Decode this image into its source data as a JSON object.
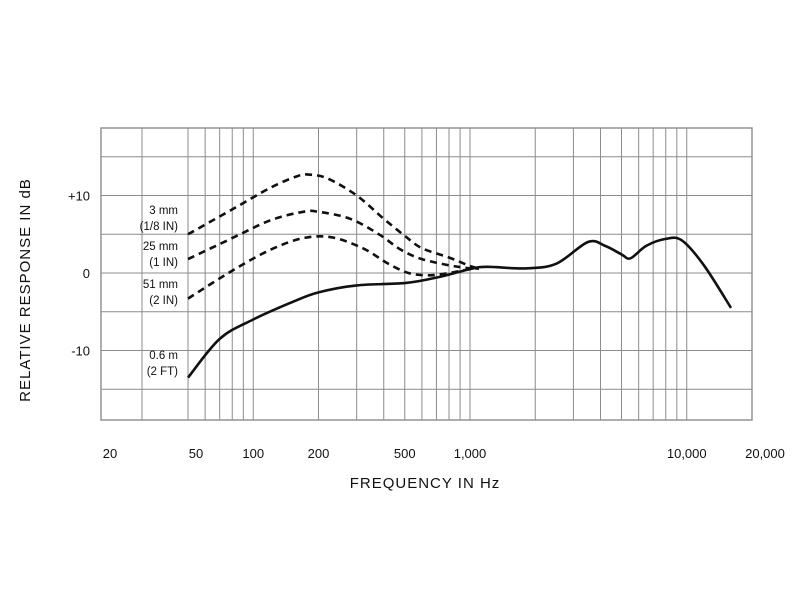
{
  "chart_data": {
    "type": "line",
    "title": "",
    "xlabel": "FREQUENCY IN Hz",
    "ylabel": "RELATIVE RESPONSE IN dB",
    "xscale": "log",
    "xlim": [
      20,
      20000
    ],
    "ylim": [
      -20,
      20
    ],
    "grid": true,
    "x_tick_labels": [
      {
        "value": 20,
        "label": "20"
      },
      {
        "value": 50,
        "label": "50"
      },
      {
        "value": 100,
        "label": "100"
      },
      {
        "value": 200,
        "label": "200"
      },
      {
        "value": 500,
        "label": "500"
      },
      {
        "value": 1000,
        "label": "1,000"
      },
      {
        "value": 10000,
        "label": "10,000"
      },
      {
        "value": 20000,
        "label": "20,000"
      }
    ],
    "y_tick_labels": [
      {
        "value": 10,
        "label": "+10"
      },
      {
        "value": 0,
        "label": "0"
      },
      {
        "value": -10,
        "label": "-10"
      }
    ],
    "series": [
      {
        "name": "3 mm (1/8 IN)",
        "label_lines": [
          "3 mm",
          "(1/8 IN)"
        ],
        "style": "dashed",
        "points": [
          [
            50,
            5
          ],
          [
            80,
            8.2
          ],
          [
            120,
            11
          ],
          [
            160,
            12.5
          ],
          [
            180,
            12.7
          ],
          [
            220,
            12.2
          ],
          [
            300,
            10
          ],
          [
            400,
            7
          ],
          [
            500,
            4.8
          ],
          [
            600,
            3.2
          ],
          [
            800,
            2
          ],
          [
            1000,
            0.9
          ],
          [
            1100,
            0.6
          ]
        ]
      },
      {
        "name": "25 mm (1 IN)",
        "label_lines": [
          "25 mm",
          "(1 IN)"
        ],
        "style": "dashed",
        "points": [
          [
            50,
            1.8
          ],
          [
            80,
            4.5
          ],
          [
            120,
            6.8
          ],
          [
            170,
            7.9
          ],
          [
            200,
            7.9
          ],
          [
            280,
            7
          ],
          [
            380,
            5
          ],
          [
            480,
            3
          ],
          [
            600,
            1.8
          ],
          [
            800,
            1
          ],
          [
            1000,
            0.6
          ],
          [
            1100,
            0.6
          ]
        ]
      },
      {
        "name": "51 mm (2 IN)",
        "label_lines": [
          "51 mm",
          "(2 IN)"
        ],
        "style": "dashed",
        "points": [
          [
            50,
            -3.3
          ],
          [
            80,
            0.3
          ],
          [
            120,
            3
          ],
          [
            170,
            4.5
          ],
          [
            230,
            4.6
          ],
          [
            320,
            3.2
          ],
          [
            420,
            1.2
          ],
          [
            520,
            0
          ],
          [
            650,
            -0.3
          ],
          [
            800,
            0
          ],
          [
            1000,
            0.5
          ],
          [
            1100,
            0.6
          ]
        ]
      },
      {
        "name": "0.6 m (2 FT)",
        "label_lines": [
          "0.6 m",
          "(2 FT)"
        ],
        "style": "solid",
        "points": [
          [
            50,
            -13.5
          ],
          [
            70,
            -8.5
          ],
          [
            100,
            -6
          ],
          [
            150,
            -3.8
          ],
          [
            200,
            -2.5
          ],
          [
            300,
            -1.6
          ],
          [
            500,
            -1.3
          ],
          [
            700,
            -0.6
          ],
          [
            1000,
            0.5
          ],
          [
            1200,
            0.8
          ],
          [
            1800,
            0.6
          ],
          [
            2500,
            1.2
          ],
          [
            3500,
            4
          ],
          [
            4200,
            3.5
          ],
          [
            5000,
            2.4
          ],
          [
            5500,
            1.9
          ],
          [
            6500,
            3.5
          ],
          [
            8000,
            4.4
          ],
          [
            9500,
            4.2
          ],
          [
            12000,
            1
          ],
          [
            16000,
            -4.5
          ]
        ]
      }
    ]
  }
}
